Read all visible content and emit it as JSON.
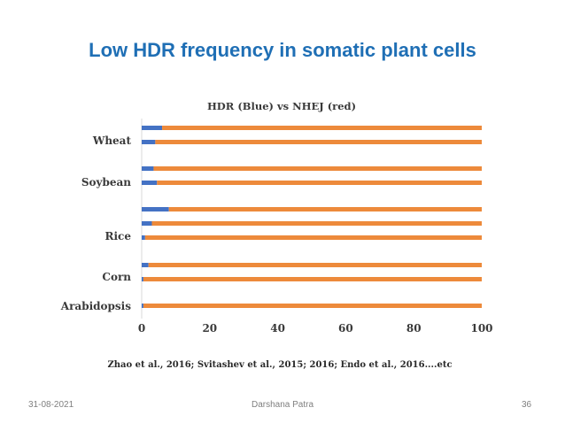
{
  "slide": {
    "title": "Low HDR frequency in somatic plant cells",
    "footer": {
      "date": "31-08-2021",
      "author": "Darshana Patra",
      "page": "36"
    }
  },
  "colors": {
    "hdr": "#4472c4",
    "nhej": "#ed8a3b",
    "title": "#1f6fb5"
  },
  "chart_data": {
    "type": "bar",
    "orientation": "horizontal",
    "stacked": true,
    "title": "HDR (Blue) vs NHEJ (red)",
    "xlabel": "",
    "ylabel": "",
    "xlim": [
      0,
      100
    ],
    "x_ticks": [
      "0",
      "20",
      "40",
      "60",
      "80",
      "100"
    ],
    "grid": false,
    "legend": "none",
    "categories": [
      "Wheat",
      "Soybean",
      "Rice",
      "Corn",
      "Arabidopsis"
    ],
    "bars": [
      {
        "group": "Wheat",
        "hdr": 6,
        "nhej": 94
      },
      {
        "group": "Wheat",
        "hdr": 4,
        "nhej": 96
      },
      {
        "group": "Soybean",
        "hdr": 3.5,
        "nhej": 96.5
      },
      {
        "group": "Soybean",
        "hdr": 4.5,
        "nhej": 95.5
      },
      {
        "group": "Rice",
        "hdr": 8,
        "nhej": 92
      },
      {
        "group": "Rice",
        "hdr": 3,
        "nhej": 97
      },
      {
        "group": "Rice",
        "hdr": 1,
        "nhej": 99
      },
      {
        "group": "Corn",
        "hdr": 2,
        "nhej": 98
      },
      {
        "group": "Corn",
        "hdr": 0.5,
        "nhej": 99.5
      },
      {
        "group": "Arabidopsis",
        "hdr": 0.5,
        "nhej": 99.5
      }
    ],
    "caption": "Zhao et al., 2016; Svitashev et al., 2015; 2016; Endo et al., 2016....etc"
  }
}
